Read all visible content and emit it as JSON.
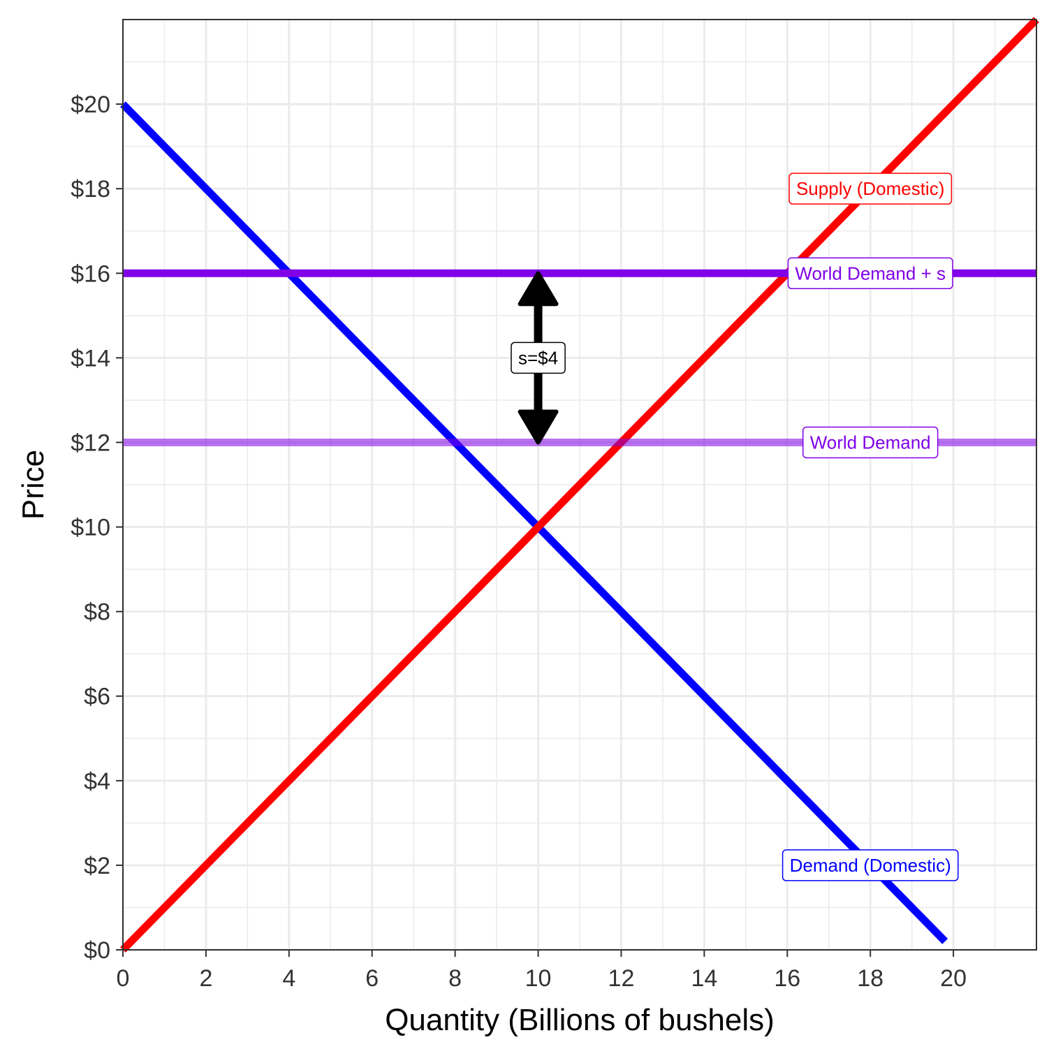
{
  "chart_data": {
    "type": "line",
    "title": "",
    "xlabel": "Quantity (Billions of bushels)",
    "ylabel": "Price",
    "xlim": [
      0,
      22
    ],
    "ylim": [
      0,
      22
    ],
    "x_ticks": [
      0,
      2,
      4,
      6,
      8,
      10,
      12,
      14,
      16,
      18,
      20
    ],
    "x_tick_labels": [
      "0",
      "2",
      "4",
      "6",
      "8",
      "10",
      "12",
      "14",
      "16",
      "18",
      "20"
    ],
    "y_ticks": [
      0,
      2,
      4,
      6,
      8,
      10,
      12,
      14,
      16,
      18,
      20
    ],
    "y_tick_labels": [
      "$0",
      "$2",
      "$4",
      "$6",
      "$8",
      "$10",
      "$12",
      "$14",
      "$16",
      "$18",
      "$20"
    ],
    "grid": true,
    "series": [
      {
        "name": "Demand (Domestic)",
        "color": "#0000FF",
        "x": [
          0,
          19.8
        ],
        "y": [
          20,
          0.2
        ],
        "label_at": [
          18,
          2
        ]
      },
      {
        "name": "Supply (Domestic)",
        "color": "#FF0000",
        "x": [
          0,
          22
        ],
        "y": [
          0,
          22
        ],
        "label_at": [
          18,
          18
        ]
      },
      {
        "name": "World Demand + s",
        "color": "#8000E8",
        "x": [
          0,
          22
        ],
        "y": [
          16,
          16
        ],
        "label_at": [
          18,
          16
        ]
      },
      {
        "name": "World Demand",
        "color": "#8000E8",
        "opacity": 0.55,
        "x": [
          0,
          22
        ],
        "y": [
          12,
          12
        ],
        "label_at": [
          18,
          12
        ]
      }
    ],
    "annotations": [
      {
        "text": "s=$4",
        "type": "double-arrow",
        "x": 10,
        "y_from": 12,
        "y_to": 16,
        "label_y": 14
      }
    ]
  }
}
